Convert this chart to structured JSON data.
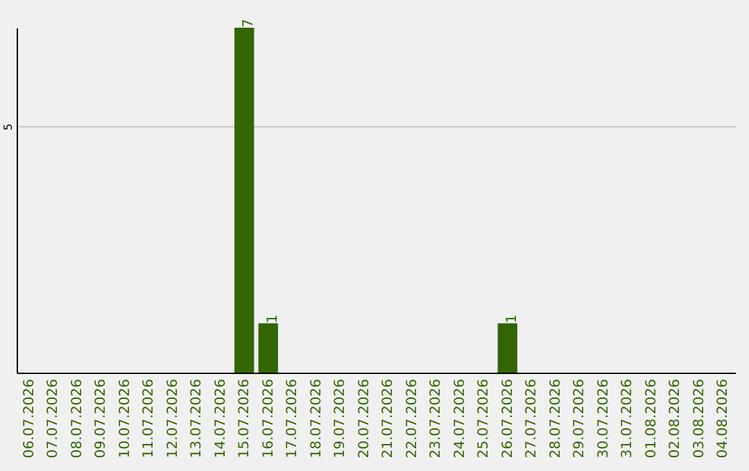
{
  "chart_data": {
    "type": "bar",
    "categories": [
      "06.07.2026",
      "07.07.2026",
      "08.07.2026",
      "09.07.2026",
      "10.07.2026",
      "11.07.2026",
      "12.07.2026",
      "13.07.2026",
      "14.07.2026",
      "15.07.2026",
      "16.07.2026",
      "17.07.2026",
      "18.07.2026",
      "19.07.2026",
      "20.07.2026",
      "21.07.2026",
      "22.07.2026",
      "23.07.2026",
      "24.07.2026",
      "25.07.2026",
      "26.07.2026",
      "27.07.2026",
      "28.07.2026",
      "29.07.2026",
      "30.07.2026",
      "31.07.2026",
      "01.08.2026",
      "02.08.2026",
      "03.08.2026",
      "04.08.2026"
    ],
    "values": [
      0,
      0,
      0,
      0,
      0,
      0,
      0,
      0,
      0,
      7,
      1,
      0,
      0,
      0,
      0,
      0,
      0,
      0,
      0,
      0,
      1,
      0,
      0,
      0,
      0,
      0,
      0,
      0,
      0,
      0
    ],
    "value_labels": [
      null,
      null,
      null,
      null,
      null,
      null,
      null,
      null,
      null,
      "7",
      "1",
      null,
      null,
      null,
      null,
      null,
      null,
      null,
      null,
      null,
      "1",
      null,
      null,
      null,
      null,
      null,
      null,
      null,
      null,
      null
    ],
    "color": "#336600",
    "ylim": [
      0,
      7
    ],
    "yticks": [
      5
    ],
    "grid": "y"
  }
}
